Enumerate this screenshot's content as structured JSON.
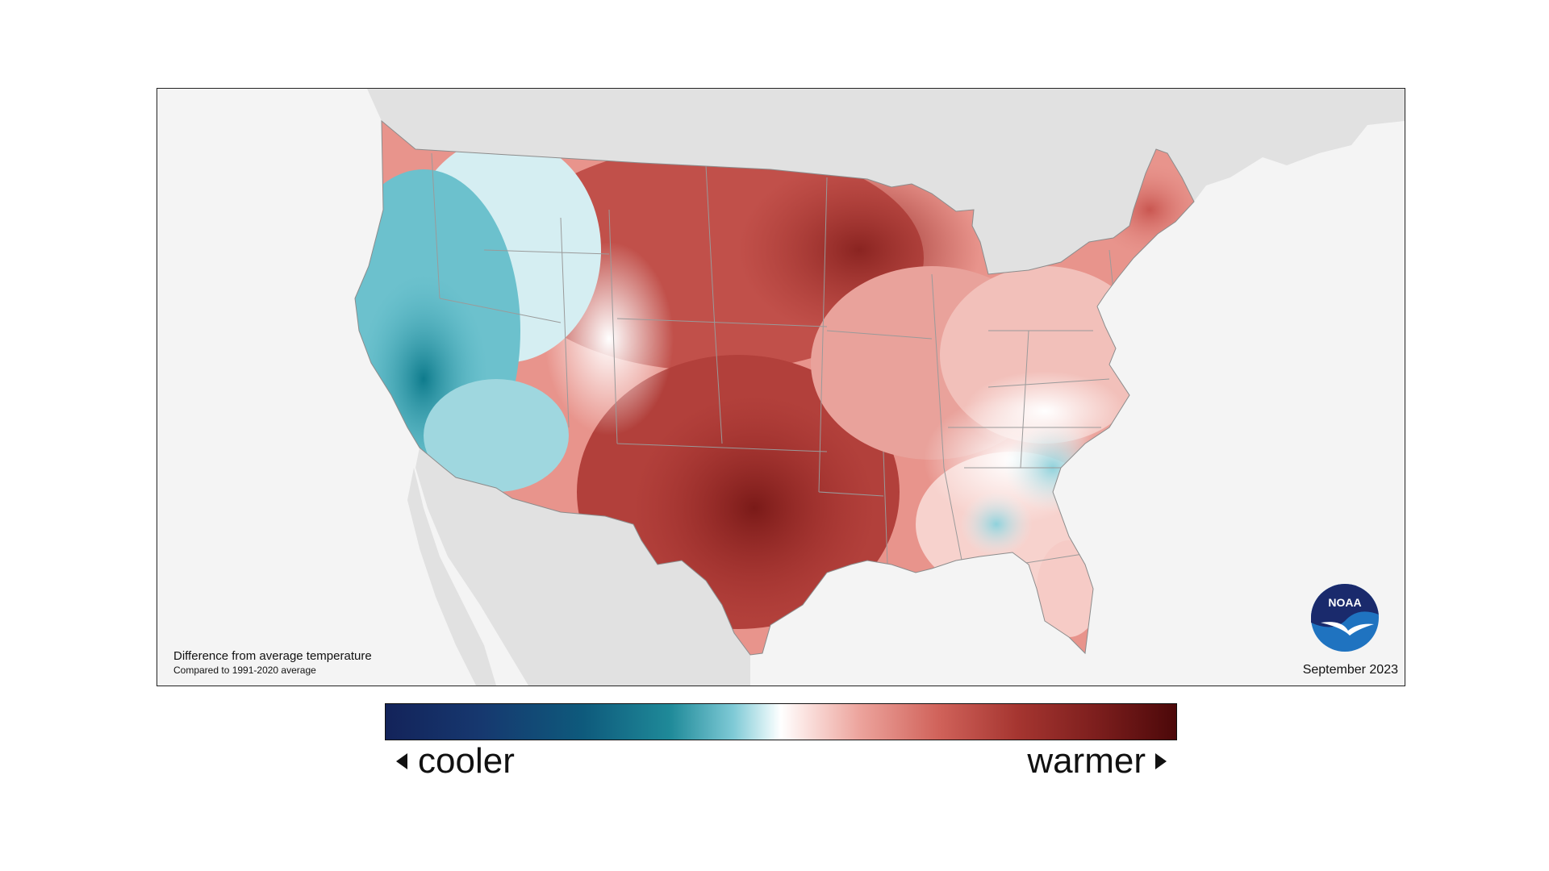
{
  "map": {
    "note_title": "Difference from average temperature",
    "note_subtitle": "Compared to 1991-2020 average",
    "date": "September 2023",
    "logo_text": "NOAA"
  },
  "legend": {
    "cool_label": "cooler",
    "warm_label": "warmer",
    "cool_end_color": "#13235a",
    "neutral_color": "#ffffff",
    "warm_end_color": "#4c0809"
  },
  "colors": {
    "ocean": "#f4f4f4",
    "foreign_land": "#e1e1e1",
    "state_borders": "#9a9a9a",
    "noaa_blue": "#1f73c0",
    "noaa_navy": "#1a2a6c"
  }
}
